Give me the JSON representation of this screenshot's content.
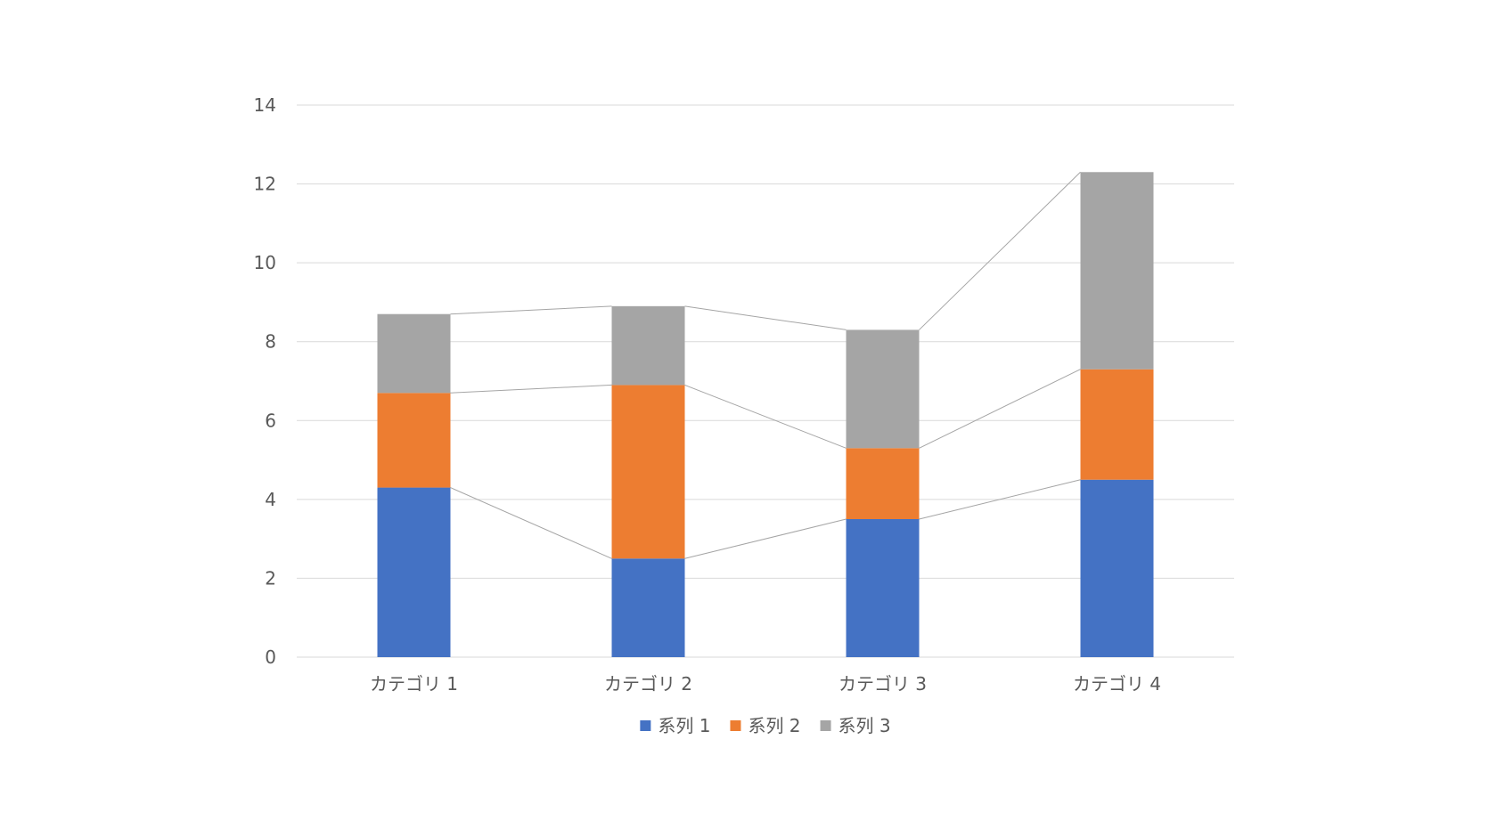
{
  "chart_data": {
    "type": "bar",
    "stacked": true,
    "series_lines": true,
    "categories": [
      "カテゴリ 1",
      "カテゴリ 2",
      "カテゴリ 3",
      "カテゴリ 4"
    ],
    "series": [
      {
        "name": "系列 1",
        "values": [
          4.3,
          2.5,
          3.5,
          4.5
        ],
        "color": "#4472C4"
      },
      {
        "name": "系列 2",
        "values": [
          2.4,
          4.4,
          1.8,
          2.8
        ],
        "color": "#ED7D31"
      },
      {
        "name": "系列 3",
        "values": [
          2.0,
          2.0,
          3.0,
          5.0
        ],
        "color": "#A5A5A5"
      }
    ],
    "ylim": [
      0,
      14
    ],
    "yticks": [
      0,
      2,
      4,
      6,
      8,
      10,
      12,
      14
    ],
    "grid": true,
    "legend": "bottom",
    "gridline_color": "#D9D9D9",
    "series_line_color": "#A5A5A5"
  }
}
